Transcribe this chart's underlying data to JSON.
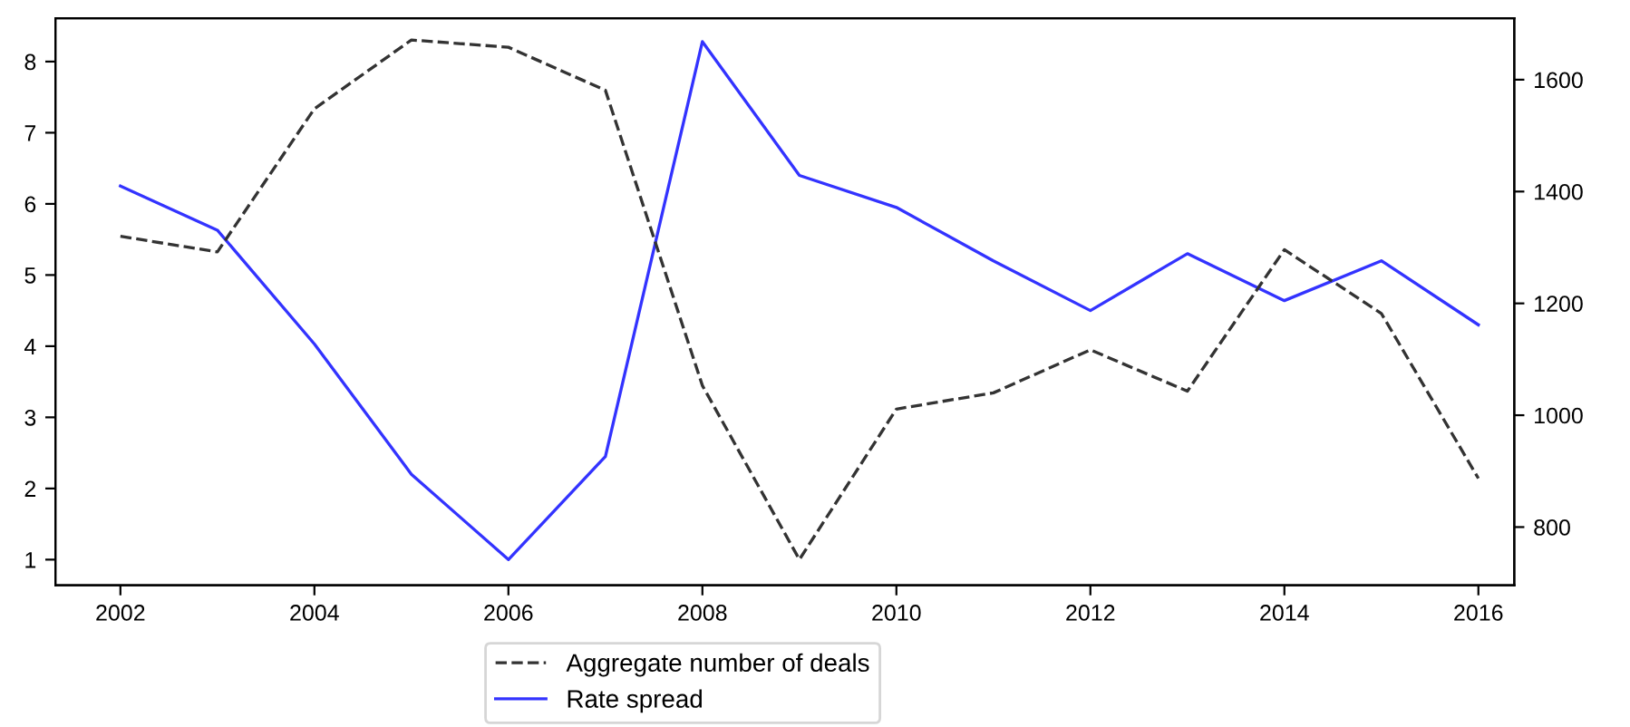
{
  "chart_data": {
    "type": "line",
    "x": [
      2002,
      2003,
      2004,
      2005,
      2006,
      2007,
      2008,
      2009,
      2010,
      2011,
      2012,
      2013,
      2014,
      2015,
      2016
    ],
    "series": [
      {
        "name": "Aggregate number of deals",
        "color": "#333333",
        "line_style": "dashed",
        "axis": "y2",
        "values": [
          1320,
          1292,
          1548,
          1671,
          1658,
          1581,
          1053,
          742,
          1011,
          1040,
          1117,
          1043,
          1296,
          1182,
          887
        ]
      },
      {
        "name": "Rate spread",
        "color": "#3333ff",
        "line_style": "solid",
        "values": [
          6.25,
          5.63,
          4.03,
          2.2,
          1.0,
          2.45,
          8.28,
          6.4,
          5.95,
          5.2,
          4.5,
          5.3,
          4.64,
          5.2,
          4.3
        ]
      }
    ],
    "xlim": [
      2001.33,
      2016.37
    ],
    "xticks": [
      2002,
      2004,
      2006,
      2008,
      2010,
      2012,
      2014,
      2016
    ],
    "ylim": [
      0.64,
      8.61
    ],
    "yticks": [
      1,
      2,
      3,
      4,
      5,
      6,
      7,
      8
    ],
    "y2lim": [
      696,
      1710
    ],
    "y2ticks": [
      800,
      1000,
      1200,
      1400,
      1600
    ],
    "grid": false,
    "legend": "bottom",
    "marker": "none"
  }
}
